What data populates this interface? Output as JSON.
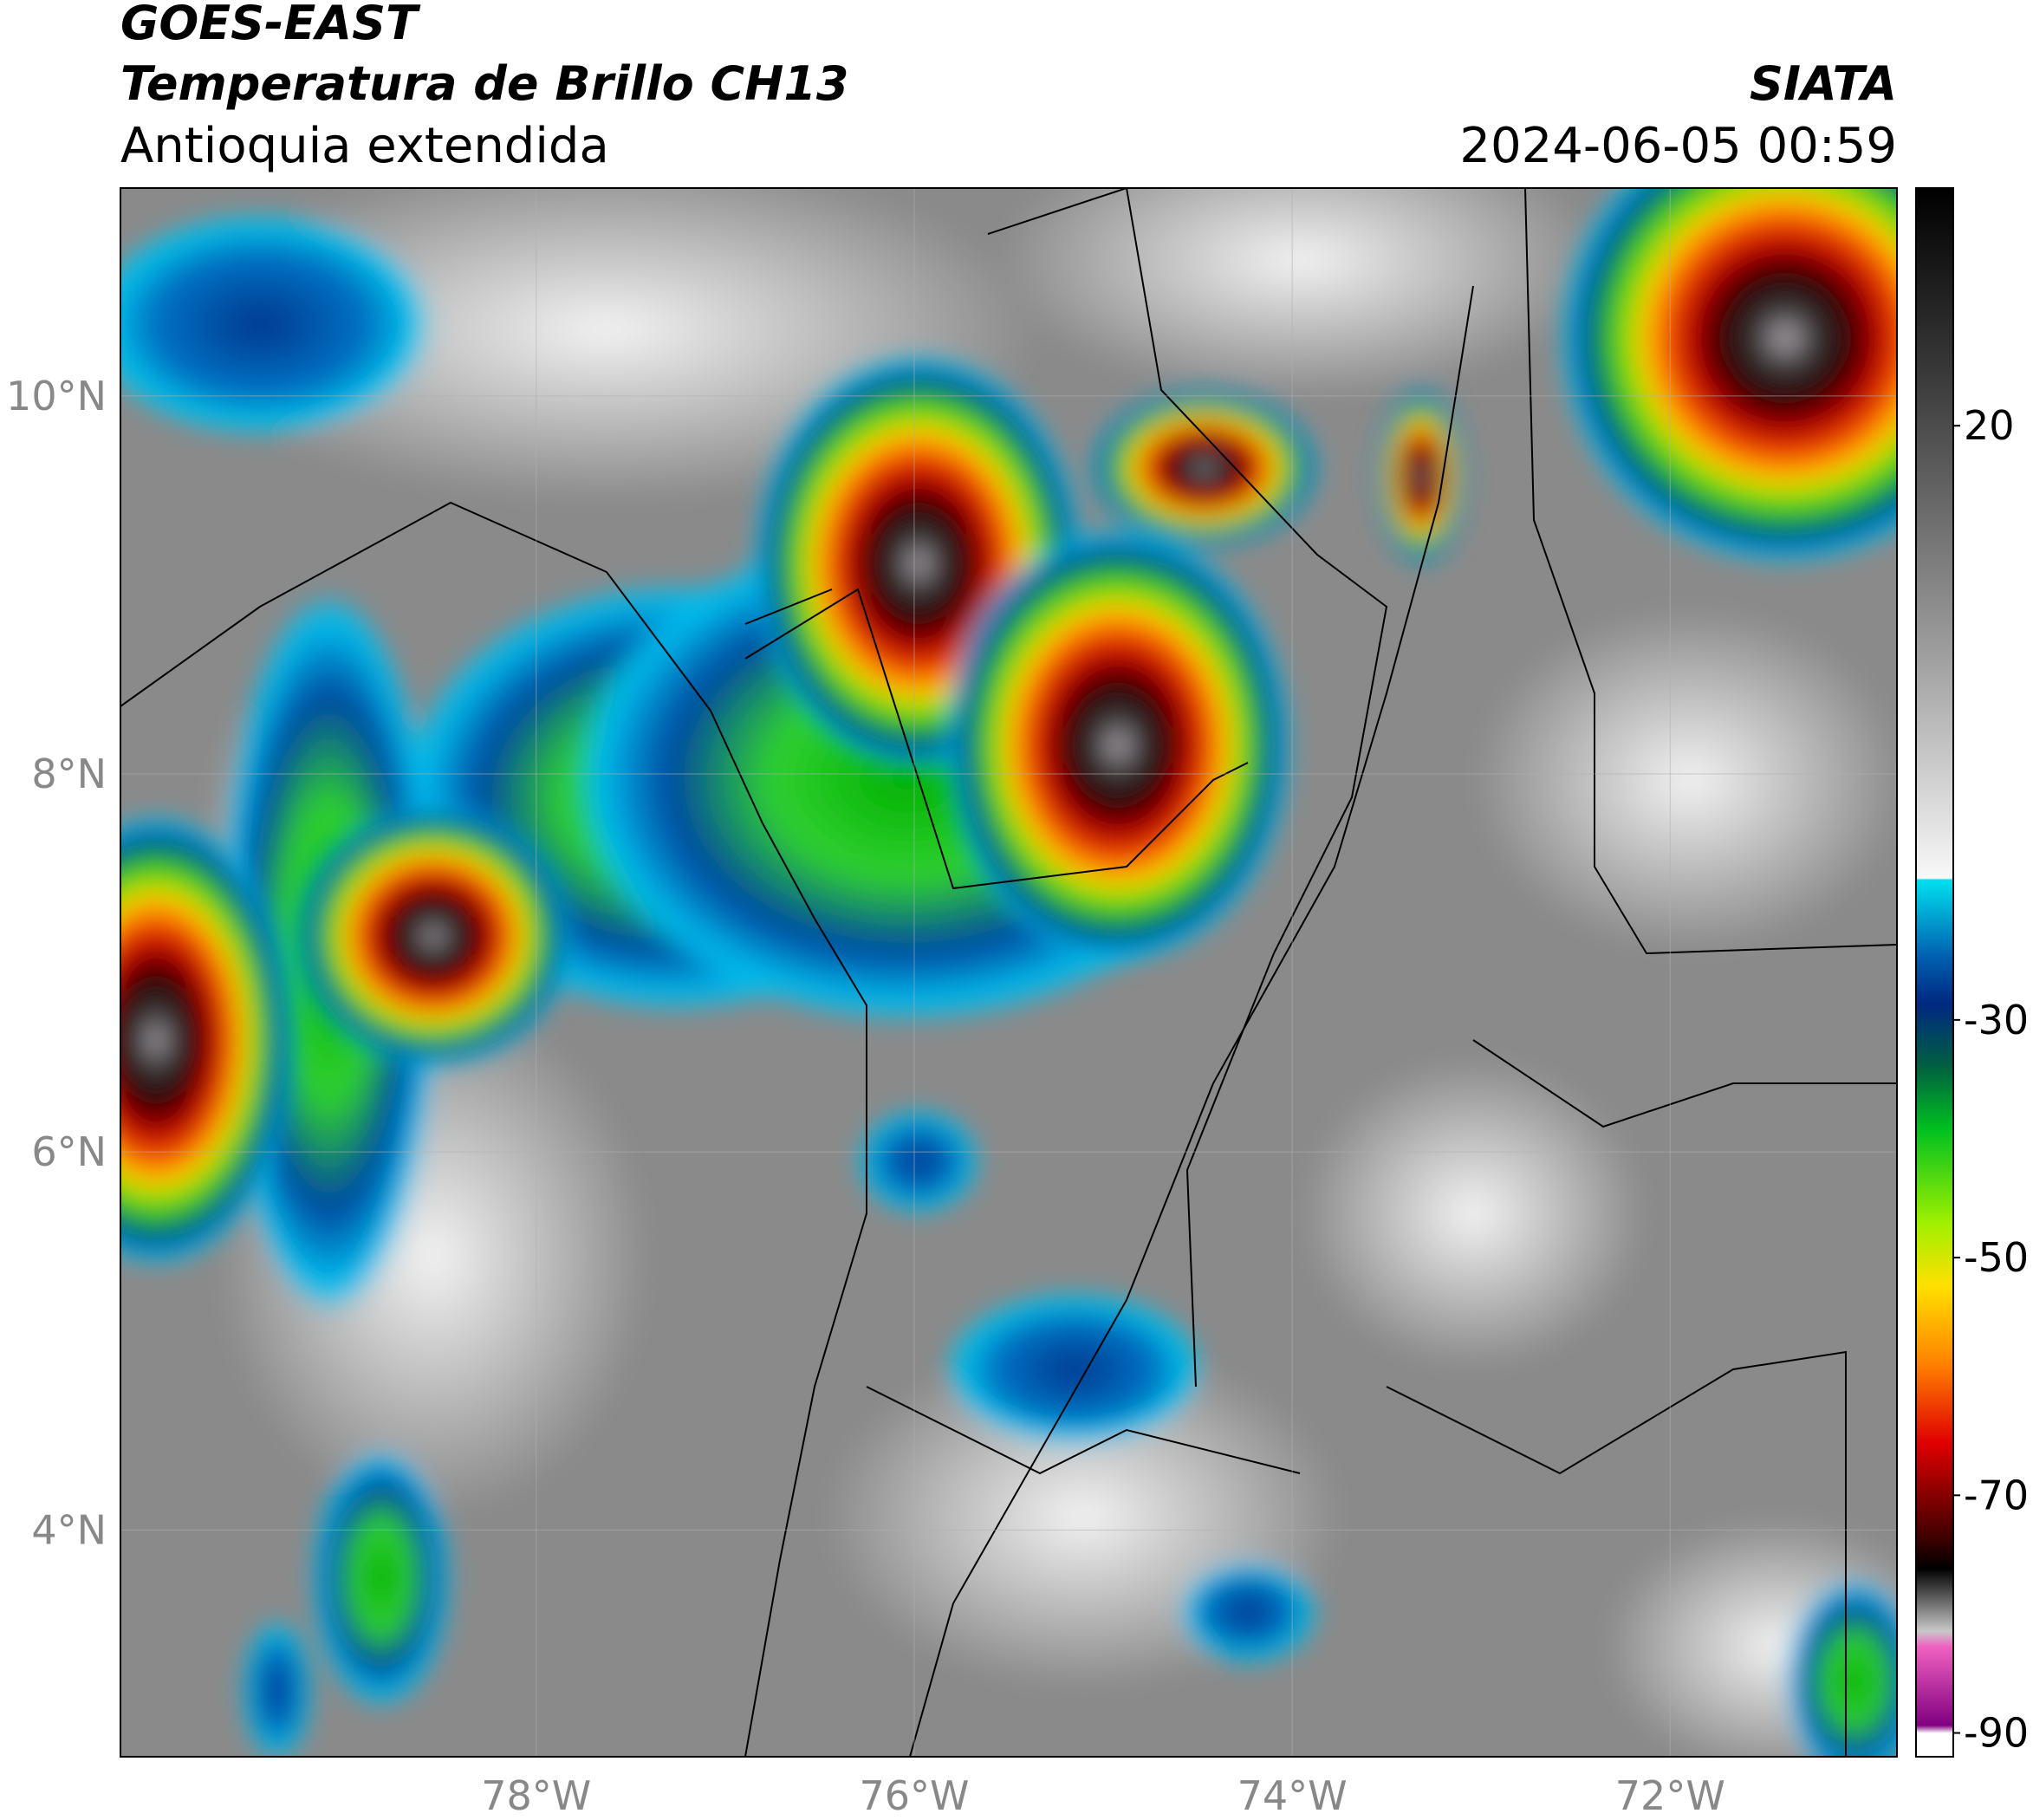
{
  "header": {
    "title": "GOES-EAST",
    "subtitle": "Temperatura de Brillo CH13",
    "region": "Antioquia extendida",
    "source": "SIATA",
    "datetime": "2024-06-05 00:59"
  },
  "map": {
    "xlim": [
      -80.2,
      -70.8
    ],
    "ylim": [
      2.8,
      11.1
    ],
    "xticks": [
      {
        "value": -78,
        "label": "78°W"
      },
      {
        "value": -76,
        "label": "76°W"
      },
      {
        "value": -74,
        "label": "74°W"
      },
      {
        "value": -72,
        "label": "72°W"
      }
    ],
    "yticks": [
      {
        "value": 4,
        "label": "4°N"
      },
      {
        "value": 6,
        "label": "6°N"
      },
      {
        "value": 8,
        "label": "8°N"
      },
      {
        "value": 10,
        "label": "10°N"
      }
    ],
    "grid": true
  },
  "colorbar": {
    "lim": [
      -92,
      40
    ],
    "ticks": [
      20,
      -30,
      -50,
      -70,
      -90
    ]
  }
}
